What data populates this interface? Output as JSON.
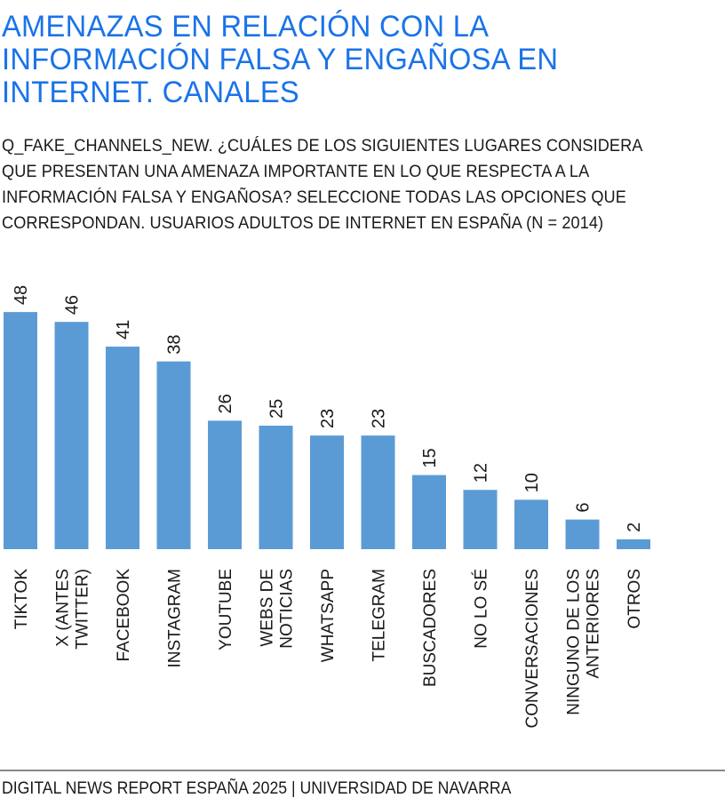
{
  "header": {
    "title": "AMENAZAS EN RELACIÓN CON LA INFORMACIÓN FALSA Y ENGAÑOSA EN INTERNET. CANALES",
    "subtitle": "Q_FAKE_CHANNELS_NEW. ¿CUÁLES DE LOS SIGUIENTES LUGARES CONSIDERA QUE PRESENTAN UNA AMENAZA IMPORTANTE EN LO QUE RESPECTA A LA INFORMACIÓN FALSA Y ENGAÑOSA? SELECCIONE TODAS LAS OPCIONES QUE CORRESPONDAN. USUARIOS ADULTOS DE INTERNET EN ESPAÑA (N = 2014)"
  },
  "footer": {
    "source": "DIGITAL NEWS REPORT ESPAÑA 2025 | UNIVERSIDAD DE NAVARRA"
  },
  "colors": {
    "bar": "#5b9bd5",
    "title": "#1a73e8"
  },
  "chart_data": {
    "type": "bar",
    "title": "AMENAZAS EN RELACIÓN CON LA INFORMACIÓN FALSA Y ENGAÑOSA EN INTERNET. CANALES",
    "categories": [
      [
        "TIKTOK"
      ],
      [
        "X (ANTES",
        "TWITTER)"
      ],
      [
        "FACEBOOK"
      ],
      [
        "INSTAGRAM"
      ],
      [
        "YOUTUBE"
      ],
      [
        "WEBS DE",
        "NOTICIAS"
      ],
      [
        "WHATSAPP"
      ],
      [
        "TELEGRAM"
      ],
      [
        "BUSCADORES"
      ],
      [
        "NO LO SÉ"
      ],
      [
        "CONVERSACIONES"
      ],
      [
        "NINGUNO DE LOS",
        "ANTERIORES"
      ],
      [
        "OTROS"
      ]
    ],
    "values": [
      48,
      46,
      41,
      38,
      26,
      25,
      23,
      23,
      15,
      12,
      10,
      6,
      2
    ],
    "xlabel": "",
    "ylabel": "",
    "ylim": [
      0,
      48
    ],
    "grid": false,
    "data_labels": true
  }
}
